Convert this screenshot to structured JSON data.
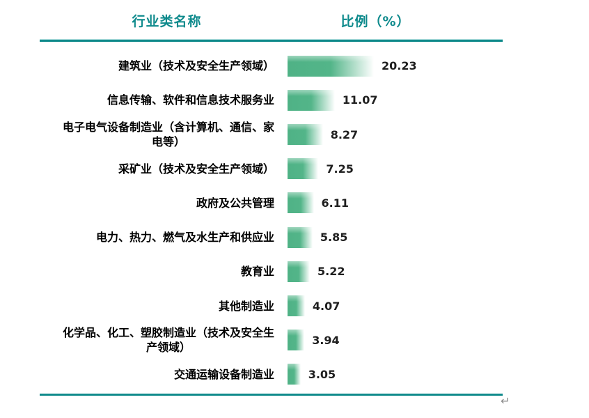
{
  "header": {
    "category_col": "行业类名称",
    "value_col": "比例（%）"
  },
  "footer": {
    "paragraph_mark": "↵"
  },
  "colors": {
    "header_text": "#0e8a8c",
    "rule": "#0f8a8b",
    "bar_solid": "#4fb286",
    "value_text": "#1f1f1f",
    "label_text": "#000000",
    "paragraph_mark": "#8c8c8c"
  },
  "chart_data": {
    "type": "bar",
    "orientation": "horizontal",
    "title": "",
    "xlabel": "比例（%）",
    "ylabel": "行业类名称",
    "xlim": [
      0,
      20.23
    ],
    "grid": false,
    "legend": false,
    "bar_color": "#4fb286",
    "value_label_position": "right-of-bar",
    "categories": [
      "建筑业（技术及安全生产领域）",
      "信息传输、软件和信息技术服务业",
      "电子电气设备制造业（含计算机、通信、家电等）",
      "采矿业（技术及安全生产领域）",
      "政府及公共管理",
      "电力、热力、燃气及水生产和供应业",
      "教育业",
      "其他制造业",
      "化学品、化工、塑胶制造业（技术及安全生产领域）",
      "交通运输设备制造业"
    ],
    "values": [
      20.23,
      11.07,
      8.27,
      7.25,
      6.11,
      5.85,
      5.22,
      4.07,
      3.94,
      3.05
    ],
    "rows": [
      {
        "category": "建筑业（技术及安全生产领域）",
        "lines": [
          "建筑业（技术及安全生产领域）"
        ],
        "value": 20.23,
        "value_label": "20.23"
      },
      {
        "category": "信息传输、软件和信息技术服务业",
        "lines": [
          "信息传输、软件和信息技术服务业"
        ],
        "value": 11.07,
        "value_label": "11.07"
      },
      {
        "category": "电子电气设备制造业（含计算机、通信、家电等）",
        "lines": [
          "电子电气设备制造业（含计算机、通信、家",
          "电等）"
        ],
        "value": 8.27,
        "value_label": "8.27"
      },
      {
        "category": "采矿业（技术及安全生产领域）",
        "lines": [
          "采矿业（技术及安全生产领域）"
        ],
        "value": 7.25,
        "value_label": "7.25"
      },
      {
        "category": "政府及公共管理",
        "lines": [
          "政府及公共管理"
        ],
        "value": 6.11,
        "value_label": "6.11"
      },
      {
        "category": "电力、热力、燃气及水生产和供应业",
        "lines": [
          "电力、热力、燃气及水生产和供应业"
        ],
        "value": 5.85,
        "value_label": "5.85"
      },
      {
        "category": "教育业",
        "lines": [
          "教育业"
        ],
        "value": 5.22,
        "value_label": "5.22"
      },
      {
        "category": "其他制造业",
        "lines": [
          "其他制造业"
        ],
        "value": 4.07,
        "value_label": "4.07"
      },
      {
        "category": "化学品、化工、塑胶制造业（技术及安全生产领域）",
        "lines": [
          "化学品、化工、塑胶制造业（技术及安全生",
          "产领域）"
        ],
        "value": 3.94,
        "value_label": "3.94"
      },
      {
        "category": "交通运输设备制造业",
        "lines": [
          "交通运输设备制造业"
        ],
        "value": 3.05,
        "value_label": "3.05"
      }
    ]
  }
}
